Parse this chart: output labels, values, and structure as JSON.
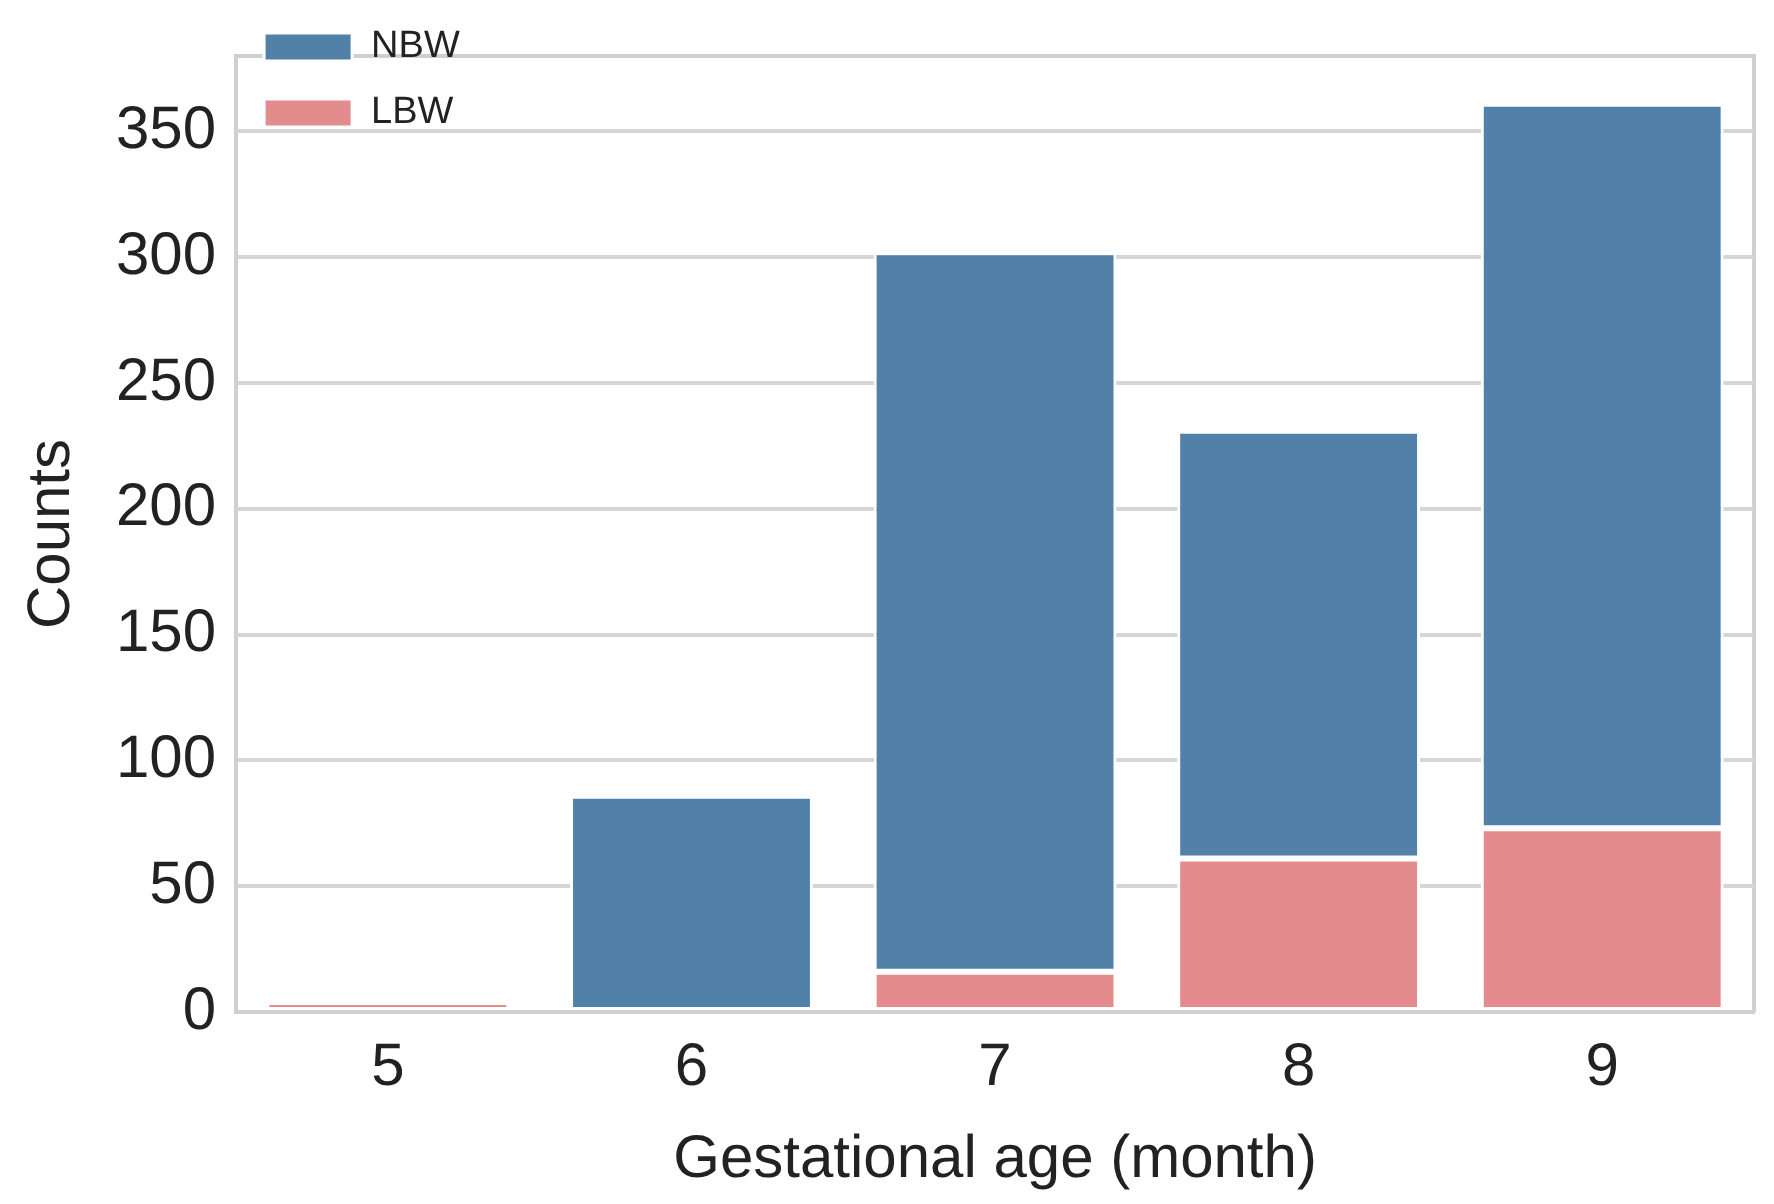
{
  "chart_data": {
    "type": "bar",
    "xlabel": "Gestational age (month)",
    "ylabel": "Counts",
    "categories": [
      "5",
      "6",
      "7",
      "8",
      "9"
    ],
    "stacked": true,
    "series": [
      {
        "name": "LBW",
        "color": "#e38b8d",
        "values": [
          4,
          0,
          16,
          61,
          73
        ]
      },
      {
        "name": "NBW",
        "color": "#5180a8",
        "values": [
          0,
          86,
          286,
          170,
          288
        ]
      }
    ],
    "ylim": [
      0,
      380
    ],
    "yticks": [
      0,
      50,
      100,
      150,
      200,
      250,
      300,
      350
    ],
    "grid": "y",
    "legend": "top left"
  }
}
